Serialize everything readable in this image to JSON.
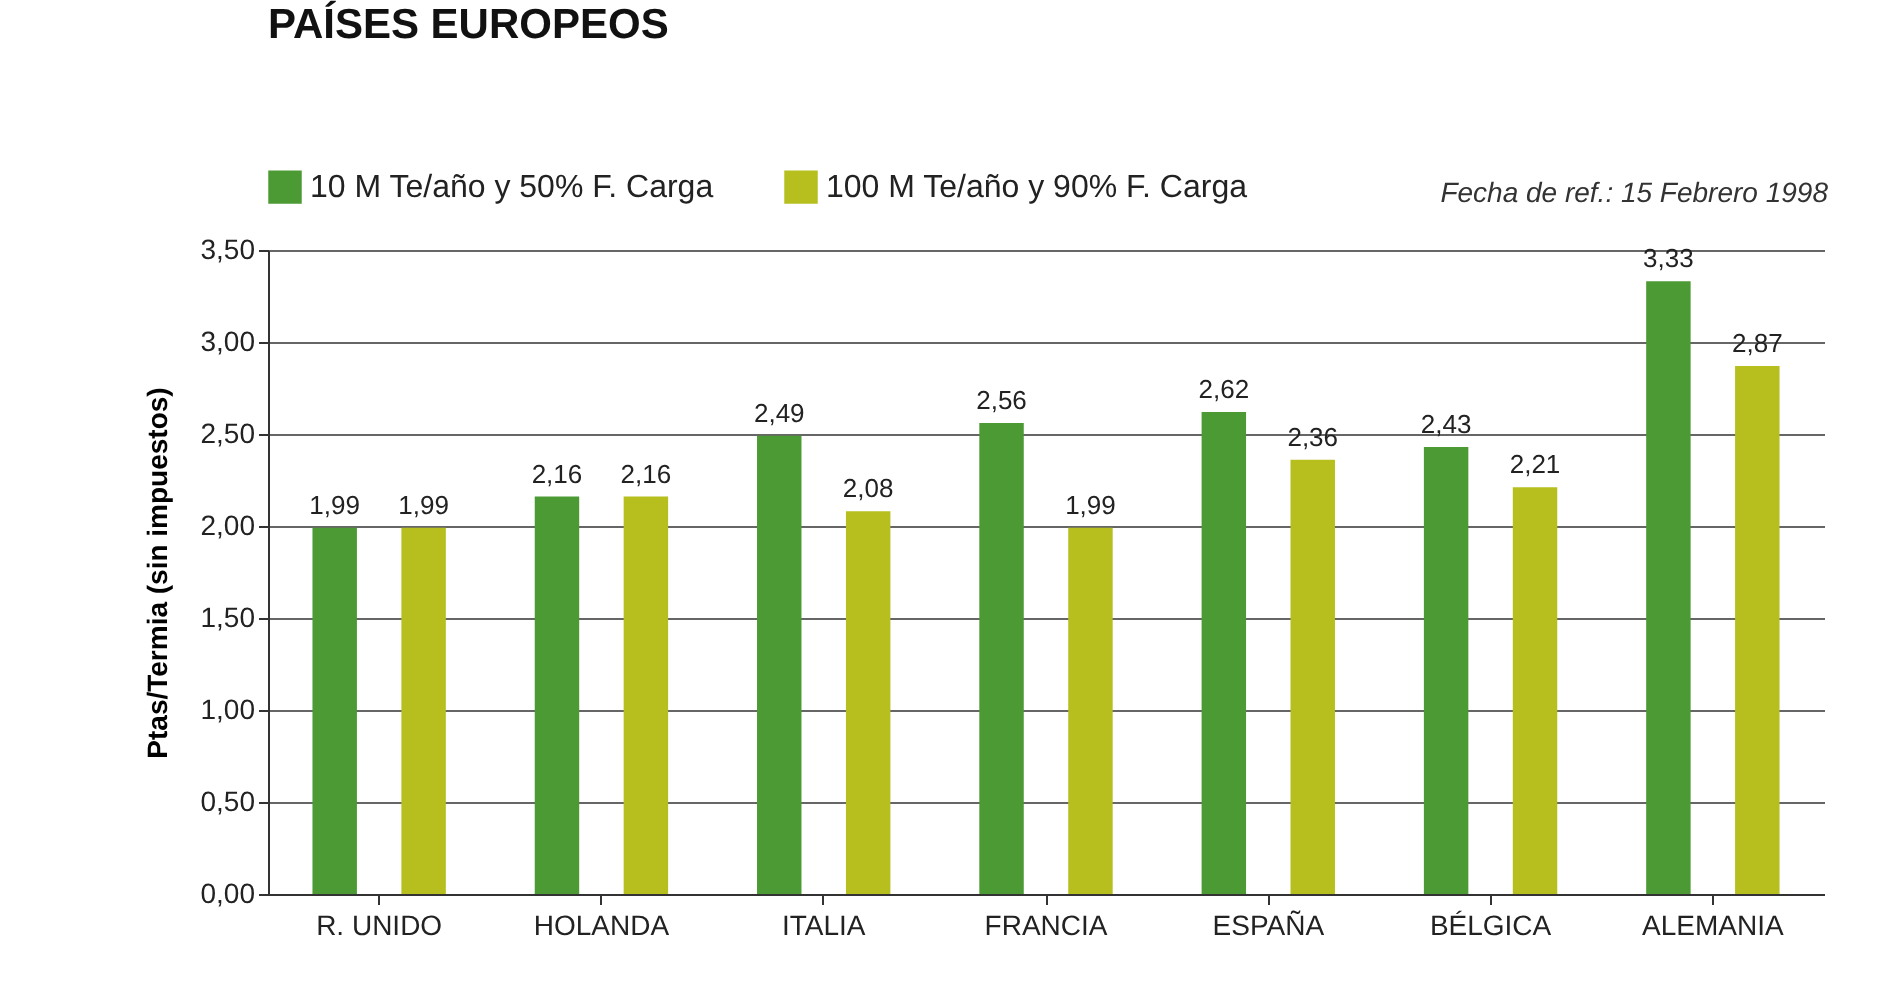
{
  "chart_data": {
    "type": "bar",
    "title": "PAÍSES EUROPEOS",
    "ylabel": "Ptas/Termia (sin impuestos)",
    "annotations": [
      "Fecha de ref.: 15 Febrero 1998"
    ],
    "categories": [
      "R. UNIDO",
      "HOLANDA",
      "ITALIA",
      "FRANCIA",
      "ESPAÑA",
      "BÉLGICA",
      "ALEMANIA"
    ],
    "series": [
      {
        "name": "10 M Te/año y 50% F.  Carga",
        "color": "#4c9a34",
        "values": [
          1.99,
          2.16,
          2.49,
          2.56,
          2.62,
          2.43,
          3.33
        ],
        "value_labels": [
          "1,99",
          "2,16",
          "2,49",
          "2,56",
          "2,62",
          "2,43",
          "3,33"
        ]
      },
      {
        "name": "100 M Te/año y 90% F.  Carga",
        "color": "#b6bf1e",
        "values": [
          1.99,
          2.16,
          2.08,
          1.99,
          2.36,
          2.21,
          2.87
        ],
        "value_labels": [
          "1,99",
          "2,16",
          "2,08",
          "1,99",
          "2,36",
          "2,21",
          "2,87"
        ]
      }
    ],
    "ylim": [
      0,
      3.5
    ],
    "yticks": [
      {
        "value": 0,
        "label": "0,00"
      },
      {
        "value": 0.5,
        "label": "0,50"
      },
      {
        "value": 1,
        "label": "1,00"
      },
      {
        "value": 1.5,
        "label": "1,50"
      },
      {
        "value": 2,
        "label": "2,00"
      },
      {
        "value": 2.5,
        "label": "2,50"
      },
      {
        "value": 3,
        "label": "3,00"
      },
      {
        "value": 3.5,
        "label": "3,50"
      }
    ],
    "grid": "y",
    "legend": "top left"
  }
}
